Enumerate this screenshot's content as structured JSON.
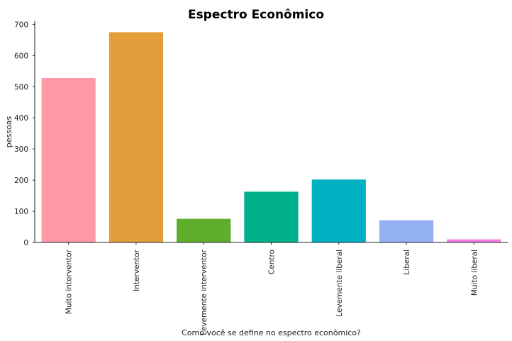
{
  "chart_data": {
    "type": "bar",
    "title": "Espectro Econômico",
    "xlabel": "Como você se define no espectro econômico?",
    "ylabel": "pessoas",
    "categories": [
      "Muito interventor",
      "Interventor",
      "Levemente interventor",
      "Centro",
      "Levemente liberal",
      "Liberal",
      "Muito liberal"
    ],
    "values": [
      528,
      675,
      76,
      163,
      202,
      71,
      10
    ],
    "colors": [
      "#ff99a5",
      "#e29e3a",
      "#5fae2c",
      "#00b08b",
      "#00b0c2",
      "#93b0f2",
      "#f47ae8"
    ],
    "ylim": [
      0,
      710
    ],
    "yticks": [
      0,
      100,
      200,
      300,
      400,
      500,
      600,
      700
    ],
    "grid": false,
    "legend": "none"
  }
}
